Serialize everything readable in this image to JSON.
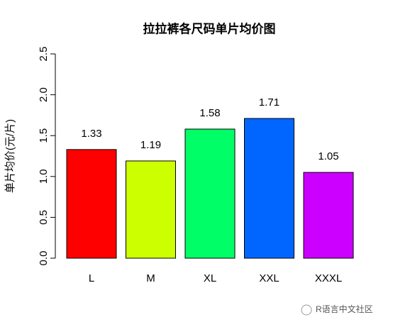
{
  "chart_data": {
    "type": "bar",
    "title": "拉拉裤各尺码单片均价图",
    "y_label": "单片均价(元/片)",
    "categories": [
      "L",
      "M",
      "XL",
      "XXL",
      "XXXL"
    ],
    "values": [
      1.33,
      1.19,
      1.58,
      1.71,
      1.05
    ],
    "colors": [
      "#ff0000",
      "#ccff00",
      "#00ff66",
      "#0066ff",
      "#cc00ff"
    ],
    "ylim": [
      0,
      2.5
    ],
    "yticks": [
      {
        "value": 0,
        "label": "0.0"
      },
      0.5,
      {
        "value": 1,
        "label": "1.0"
      },
      1.5,
      {
        "value": 2,
        "label": "2.0"
      },
      2.5
    ],
    "grid": false
  },
  "watermark": "R语言中文社区"
}
